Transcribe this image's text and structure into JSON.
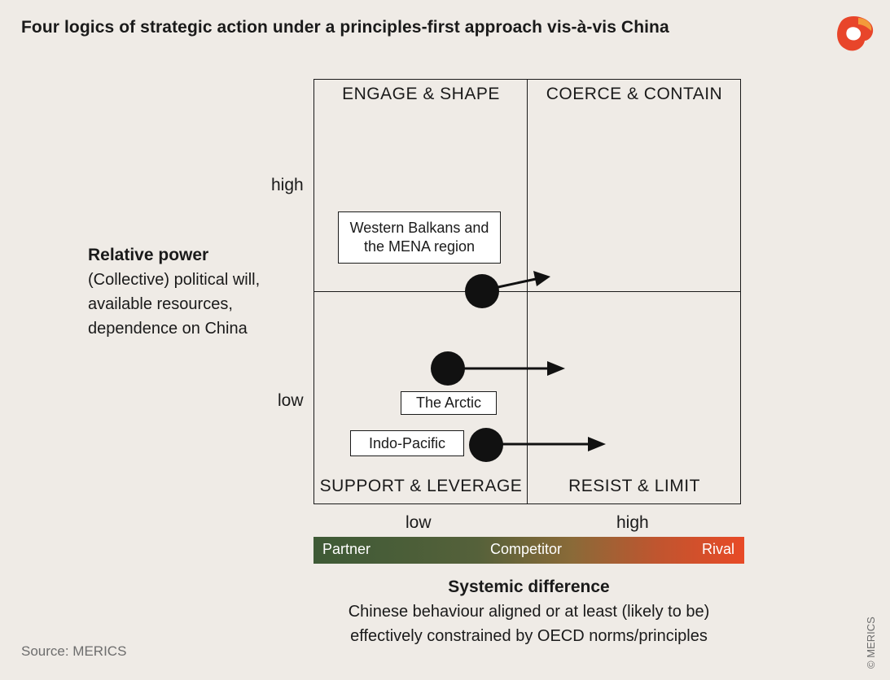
{
  "title": "Four logics of strategic action under a principles-first approach vis-à-vis China",
  "quadrants": {
    "top_left": "ENGAGE & SHAPE",
    "top_right": "COERCE & CONTAIN",
    "bottom_left": "SUPPORT & LEVERAGE",
    "bottom_right": "RESIST & LIMIT"
  },
  "y_axis": {
    "high": "high",
    "low": "low",
    "title": "Relative power",
    "description": [
      "(Collective) political will,",
      "available resources,",
      "dependence on China"
    ]
  },
  "x_axis": {
    "low": "low",
    "high": "high",
    "scale": [
      "Partner",
      "Competitor",
      "Rival"
    ],
    "scale_colors": [
      "#3e5a36",
      "#8a6a38",
      "#e84a27"
    ],
    "title": "Systemic difference",
    "description": [
      "Chinese behaviour aligned or at least (likely to be)",
      "effectively constrained by OECD norms/principles"
    ]
  },
  "regions": [
    {
      "label_lines": [
        "Western Balkans and",
        "the MENA region"
      ]
    },
    {
      "label_lines": [
        "The Arctic"
      ]
    },
    {
      "label_lines": [
        "Indo-Pacific"
      ]
    }
  ],
  "source": "Source: MERICS",
  "copyright": "© MERICS",
  "logo_icon": "merics-logo-icon"
}
